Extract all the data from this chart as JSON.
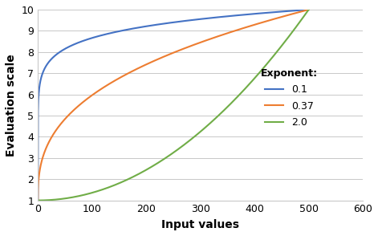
{
  "x_min": 0,
  "x_max": 500,
  "y_min": 1,
  "y_max": 10,
  "x_axis_max": 600,
  "x_ticks": [
    0,
    100,
    200,
    300,
    400,
    500,
    600
  ],
  "y_ticks": [
    1,
    2,
    3,
    4,
    5,
    6,
    7,
    8,
    9,
    10
  ],
  "exponents": [
    0.1,
    0.37,
    2.0
  ],
  "colors": [
    "#4472C4",
    "#ED7D31",
    "#70AD47"
  ],
  "labels": [
    "0.1",
    "0.37",
    "2.0"
  ],
  "xlabel": "Input values",
  "ylabel": "Evaluation scale",
  "legend_title": "Exponent:",
  "figsize": [
    4.71,
    2.94
  ],
  "dpi": 100
}
